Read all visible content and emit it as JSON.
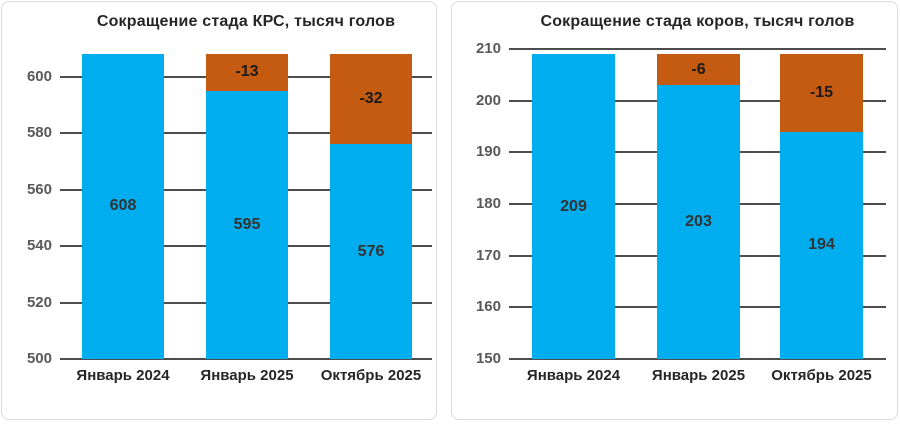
{
  "palette": {
    "bar_blue": "#00AEEF",
    "delta_orange": "#C55A11",
    "grid_line": "#4D4D4D",
    "axis_text": "#595959",
    "label_text": "#262626",
    "panel_border": "#D9D9D9",
    "background": "#FFFFFF"
  },
  "chart_data": [
    {
      "type": "bar",
      "title": "Сокращение стада КРС, тысяч голов",
      "categories": [
        "Январь 2024",
        "Январь 2025",
        "Октябрь 2025"
      ],
      "series": [
        {
          "name": "Поголовье",
          "values": [
            608,
            595,
            576
          ]
        },
        {
          "name": "Сокращение",
          "values": [
            0,
            -13,
            -32
          ]
        }
      ],
      "value_labels": [
        "608",
        "595",
        "576"
      ],
      "delta_labels": [
        "",
        "-13",
        "-32"
      ],
      "ylim": [
        500,
        610
      ],
      "yticks": [
        500,
        520,
        540,
        560,
        580,
        600
      ],
      "grid": true,
      "legend": "none"
    },
    {
      "type": "bar",
      "title": "Сокращение стада коров, тысяч голов",
      "categories": [
        "Январь 2024",
        "Январь 2025",
        "Октябрь 2025"
      ],
      "series": [
        {
          "name": "Поголовье",
          "values": [
            209,
            203,
            194
          ]
        },
        {
          "name": "Сокращение",
          "values": [
            0,
            -6,
            -15
          ]
        }
      ],
      "value_labels": [
        "209",
        "203",
        "194"
      ],
      "delta_labels": [
        "",
        "-6",
        "-15"
      ],
      "ylim": [
        150,
        210
      ],
      "yticks": [
        150,
        160,
        170,
        180,
        190,
        200,
        210
      ],
      "grid": true,
      "legend": "none"
    }
  ]
}
